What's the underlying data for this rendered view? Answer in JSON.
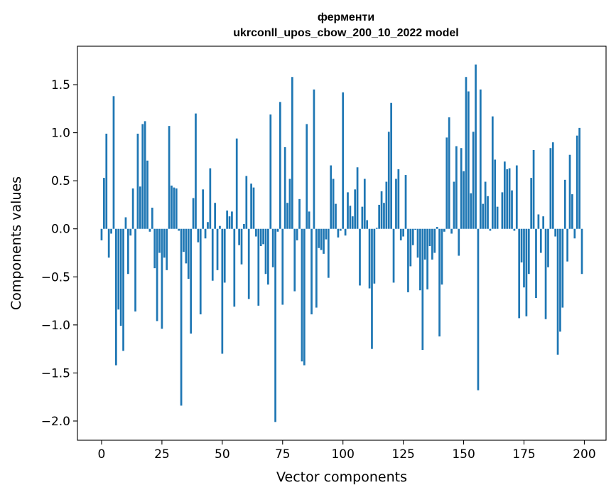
{
  "chart_data": {
    "type": "bar",
    "title": "ферменти",
    "subtitle": "ukrconll_upos_cbow_200_10_2022 model",
    "xlabel": "Vector components",
    "ylabel": "Components values",
    "xlim": [
      -10,
      209
    ],
    "ylim": [
      -2.2,
      1.9
    ],
    "xticks": [
      0,
      25,
      50,
      75,
      100,
      125,
      150,
      175,
      200
    ],
    "xtick_labels": [
      "0",
      "25",
      "50",
      "75",
      "100",
      "125",
      "150",
      "175",
      "200"
    ],
    "yticks": [
      -2.0,
      -1.5,
      -1.0,
      -0.5,
      0.0,
      0.5,
      1.0,
      1.5
    ],
    "ytick_labels": [
      "−2.0",
      "−1.5",
      "−1.0",
      "−0.5",
      "0.0",
      "0.5",
      "1.0",
      "1.5"
    ],
    "bar_color": "#1f77b4",
    "x": [
      0,
      1,
      2,
      3,
      4,
      5,
      6,
      7,
      8,
      9,
      10,
      11,
      12,
      13,
      14,
      15,
      16,
      17,
      18,
      19,
      20,
      21,
      22,
      23,
      24,
      25,
      26,
      27,
      28,
      29,
      30,
      31,
      32,
      33,
      34,
      35,
      36,
      37,
      38,
      39,
      40,
      41,
      42,
      43,
      44,
      45,
      46,
      47,
      48,
      49,
      50,
      51,
      52,
      53,
      54,
      55,
      56,
      57,
      58,
      59,
      60,
      61,
      62,
      63,
      64,
      65,
      66,
      67,
      68,
      69,
      70,
      71,
      72,
      73,
      74,
      75,
      76,
      77,
      78,
      79,
      80,
      81,
      82,
      83,
      84,
      85,
      86,
      87,
      88,
      89,
      90,
      91,
      92,
      93,
      94,
      95,
      96,
      97,
      98,
      99,
      100,
      101,
      102,
      103,
      104,
      105,
      106,
      107,
      108,
      109,
      110,
      111,
      112,
      113,
      114,
      115,
      116,
      117,
      118,
      119,
      120,
      121,
      122,
      123,
      124,
      125,
      126,
      127,
      128,
      129,
      130,
      131,
      132,
      133,
      134,
      135,
      136,
      137,
      138,
      139,
      140,
      141,
      142,
      143,
      144,
      145,
      146,
      147,
      148,
      149,
      150,
      151,
      152,
      153,
      154,
      155,
      156,
      157,
      158,
      159,
      160,
      161,
      162,
      163,
      164,
      165,
      166,
      167,
      168,
      169,
      170,
      171,
      172,
      173,
      174,
      175,
      176,
      177,
      178,
      179,
      180,
      181,
      182,
      183,
      184,
      185,
      186,
      187,
      188,
      189,
      190,
      191,
      192,
      193,
      194,
      195,
      196,
      197,
      198,
      199
    ],
    "values": [
      -0.12,
      0.53,
      0.99,
      -0.3,
      -0.05,
      1.38,
      -1.42,
      -0.84,
      -1.01,
      -1.27,
      0.12,
      -0.47,
      -0.07,
      0.42,
      -0.86,
      0.99,
      0.44,
      1.09,
      1.12,
      0.71,
      -0.03,
      0.22,
      -0.41,
      -0.96,
      -0.25,
      -1.04,
      -0.3,
      -0.43,
      1.07,
      0.45,
      0.43,
      0.42,
      -0.02,
      -1.84,
      -0.24,
      -0.36,
      -0.52,
      -1.09,
      0.32,
      1.2,
      -0.14,
      -0.89,
      0.41,
      -0.1,
      0.07,
      0.63,
      -0.54,
      0.27,
      -0.43,
      0.03,
      -1.3,
      -0.56,
      0.19,
      0.13,
      0.18,
      -0.81,
      0.94,
      -0.17,
      -0.37,
      0.05,
      0.55,
      -0.73,
      0.47,
      0.43,
      -0.08,
      -0.8,
      -0.18,
      -0.16,
      -0.47,
      -0.58,
      1.19,
      -0.4,
      -2.01,
      -0.03,
      1.32,
      -0.79,
      0.85,
      0.27,
      0.52,
      1.58,
      -0.65,
      -0.12,
      0.31,
      -1.38,
      -1.42,
      1.09,
      0.18,
      -0.89,
      1.45,
      -0.82,
      -0.2,
      -0.22,
      -0.26,
      -0.11,
      -0.51,
      0.66,
      0.52,
      0.26,
      -0.09,
      -0.02,
      1.42,
      -0.07,
      0.38,
      0.24,
      0.13,
      0.41,
      0.64,
      -0.59,
      0.23,
      0.52,
      0.09,
      -0.62,
      -1.25,
      -0.57,
      0.01,
      0.25,
      0.39,
      0.27,
      0.49,
      1.01,
      1.31,
      -0.56,
      0.52,
      0.62,
      -0.12,
      -0.08,
      0.56,
      -0.66,
      -0.39,
      -0.17,
      -0.01,
      -0.3,
      -0.64,
      -1.26,
      -0.32,
      -0.63,
      -0.18,
      -0.32,
      -0.25,
      0.02,
      -1.12,
      -0.58,
      -0.03,
      0.95,
      1.16,
      -0.05,
      0.49,
      0.86,
      -0.28,
      0.84,
      0.6,
      1.58,
      1.43,
      0.37,
      1.01,
      1.71,
      -1.68,
      1.45,
      0.26,
      0.49,
      0.34,
      -0.02,
      1.17,
      0.72,
      0.23,
      0.0,
      0.38,
      0.7,
      0.62,
      0.63,
      0.4,
      -0.02,
      0.66,
      -0.93,
      -0.35,
      -0.61,
      -0.91,
      -0.47,
      0.53,
      0.82,
      -0.72,
      0.15,
      -0.25,
      0.13,
      -0.94,
      -0.4,
      0.84,
      0.9,
      -0.08,
      -1.31,
      -1.07,
      -0.82,
      0.51,
      -0.34,
      0.77,
      0.36,
      -0.1,
      0.97,
      1.05,
      -0.47
    ]
  }
}
